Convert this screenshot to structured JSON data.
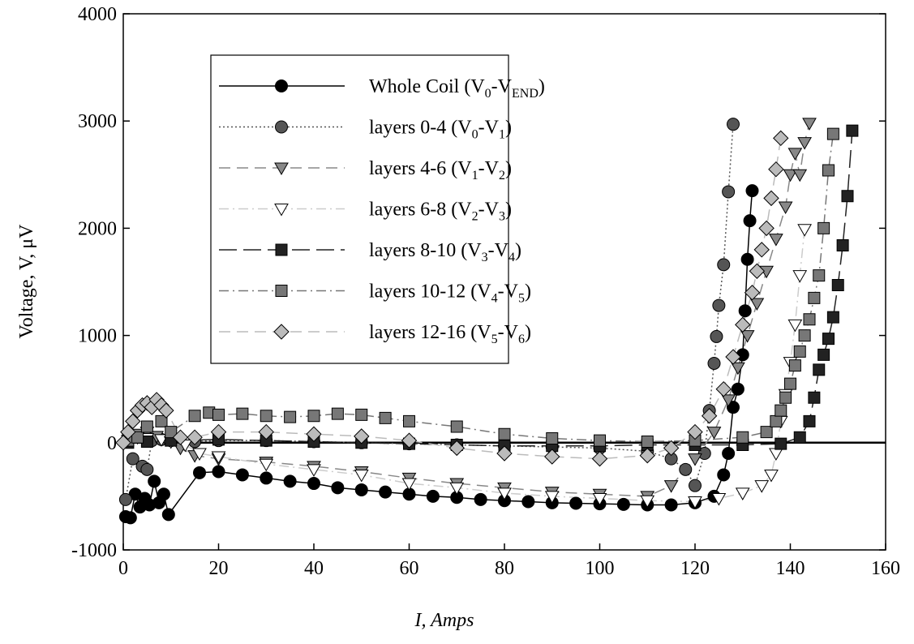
{
  "chart_data": {
    "type": "scatter",
    "xlabel": "I, Amps",
    "ylabel": "Voltage, V, μV",
    "xlim": [
      0,
      160
    ],
    "xticks": [
      0,
      20,
      40,
      60,
      80,
      100,
      120,
      140,
      160
    ],
    "ylim": [
      -1000,
      4000
    ],
    "yticks": [
      -1000,
      0,
      1000,
      2000,
      3000,
      4000
    ],
    "series": [
      {
        "name": "Whole Coil (V0-VEND)",
        "color": "#000000",
        "line": "solid",
        "marker": "circle",
        "x": [
          0.5,
          1.5,
          2.5,
          3.5,
          4.5,
          5.5,
          6.5,
          7.5,
          8.5,
          9.5,
          16,
          20,
          25,
          30,
          35,
          40,
          45,
          50,
          55,
          60,
          65,
          70,
          75,
          80,
          85,
          90,
          95,
          100,
          105,
          110,
          115,
          120,
          124,
          126,
          127,
          128,
          129,
          130,
          130.5,
          131,
          131.5,
          132
        ],
        "values": [
          -690,
          -700,
          -480,
          -600,
          -520,
          -580,
          -360,
          -560,
          -480,
          -670,
          -280,
          -270,
          -300,
          -330,
          -360,
          -380,
          -420,
          -440,
          -460,
          -480,
          -500,
          -510,
          -530,
          -540,
          -550,
          -560,
          -565,
          -570,
          -575,
          -580,
          -580,
          -560,
          -500,
          -300,
          -100,
          330,
          500,
          820,
          1230,
          1710,
          2070,
          2350
        ]
      },
      {
        "name": "layers 0-4 (V0-V1)",
        "color": "#555555",
        "line": "dotted",
        "marker": "circle",
        "x": [
          0.5,
          2,
          4,
          5,
          6,
          8,
          10,
          15,
          20,
          30,
          40,
          50,
          60,
          70,
          80,
          90,
          100,
          110,
          115,
          118,
          120,
          122,
          123,
          124,
          124.5,
          125,
          126,
          127,
          128
        ],
        "values": [
          -530,
          -150,
          -220,
          -250,
          20,
          30,
          20,
          10,
          20,
          20,
          10,
          0,
          -10,
          -20,
          -30,
          -40,
          -50,
          -80,
          -150,
          -250,
          -400,
          -100,
          300,
          740,
          990,
          1280,
          1660,
          2340,
          2970
        ]
      },
      {
        "name": "layers 4-6 (V1-V2)",
        "color": "#888888",
        "line": "dashed",
        "marker": "triangle",
        "x": [
          1,
          3,
          5,
          7,
          9,
          12,
          15,
          20,
          30,
          40,
          50,
          60,
          70,
          80,
          90,
          100,
          110,
          115,
          120,
          124,
          127,
          129,
          131,
          133,
          135,
          137,
          139,
          140,
          141,
          142,
          143,
          144
        ],
        "values": [
          50,
          80,
          100,
          60,
          30,
          -50,
          -120,
          -150,
          -180,
          -220,
          -270,
          -330,
          -380,
          -420,
          -460,
          -480,
          -500,
          -400,
          -150,
          100,
          400,
          700,
          1000,
          1300,
          1600,
          1900,
          2200,
          2500,
          2700,
          2500,
          2800,
          2980
        ]
      },
      {
        "name": "layers 6-8 (V2-V3)",
        "color": "#ffffff",
        "line": "dashdot",
        "marker": "triangle",
        "x": [
          1,
          3,
          5,
          8,
          10,
          13,
          16,
          20,
          30,
          40,
          50,
          60,
          70,
          80,
          90,
          100,
          110,
          120,
          125,
          130,
          134,
          136,
          137,
          138,
          139,
          140,
          141,
          142,
          143
        ],
        "values": [
          20,
          50,
          40,
          30,
          10,
          -20,
          -100,
          -130,
          -200,
          -250,
          -300,
          -380,
          -420,
          -470,
          -500,
          -520,
          -540,
          -550,
          -520,
          -470,
          -400,
          -300,
          -100,
          200,
          450,
          750,
          1100,
          1560,
          1990
        ]
      },
      {
        "name": "layers 8-10 (V3-V4)",
        "color": "#222222",
        "line": "longdash",
        "marker": "square",
        "x": [
          1,
          5,
          10,
          20,
          30,
          40,
          50,
          60,
          70,
          80,
          90,
          100,
          110,
          120,
          130,
          138,
          142,
          144,
          145,
          146,
          147,
          148,
          149,
          150,
          151,
          152,
          153
        ],
        "values": [
          0,
          10,
          20,
          30,
          20,
          10,
          0,
          -10,
          -20,
          -30,
          -30,
          -30,
          -20,
          -20,
          -20,
          -10,
          50,
          200,
          420,
          680,
          820,
          970,
          1170,
          1470,
          1840,
          2300,
          2910
        ]
      },
      {
        "name": "layers 10-12 (V4-V5)",
        "color": "#777777",
        "line": "dashdot",
        "marker": "square",
        "x": [
          1,
          3,
          5,
          8,
          10,
          15,
          18,
          20,
          25,
          30,
          35,
          40,
          45,
          50,
          55,
          60,
          70,
          80,
          90,
          100,
          110,
          120,
          130,
          135,
          137,
          138,
          139,
          140,
          141,
          142,
          143,
          144,
          145,
          146,
          147,
          148,
          149
        ],
        "values": [
          20,
          50,
          150,
          200,
          100,
          250,
          280,
          260,
          270,
          250,
          240,
          250,
          270,
          260,
          230,
          200,
          150,
          80,
          40,
          20,
          10,
          20,
          50,
          100,
          200,
          300,
          420,
          550,
          720,
          850,
          1000,
          1150,
          1350,
          1560,
          2000,
          2540,
          2880
        ]
      },
      {
        "name": "layers 12-16 (V5-V6)",
        "color": "#bbbbbb",
        "line": "dashed",
        "marker": "diamond",
        "x": [
          0,
          1,
          2,
          3,
          4,
          5,
          6,
          7,
          8,
          9,
          12,
          15,
          20,
          30,
          40,
          50,
          60,
          70,
          80,
          90,
          100,
          110,
          115,
          120,
          123,
          126,
          128,
          130,
          132,
          133,
          134,
          135,
          136,
          137,
          138
        ],
        "values": [
          0,
          100,
          200,
          300,
          350,
          370,
          330,
          400,
          350,
          300,
          50,
          50,
          100,
          100,
          80,
          60,
          20,
          -50,
          -100,
          -130,
          -150,
          -120,
          -50,
          100,
          250,
          500,
          800,
          1100,
          1400,
          1600,
          1800,
          2000,
          2280,
          2550,
          2840
        ]
      }
    ]
  }
}
